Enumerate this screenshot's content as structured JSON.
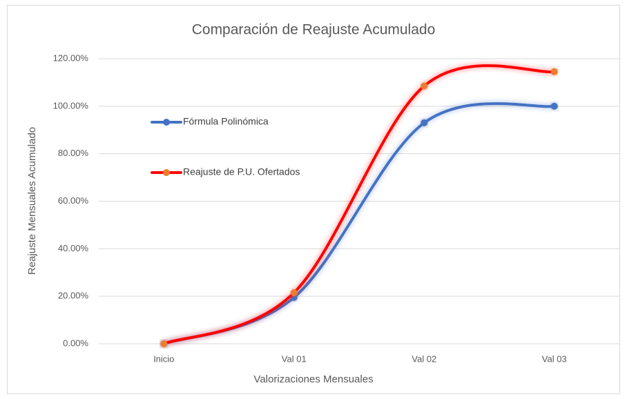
{
  "chart_data": {
    "type": "line",
    "title": "Comparación de Reajuste Acumulado",
    "x_label": "Valorizaciones Mensuales",
    "y_label": "Reajuste Mensuales Acumulado",
    "categories": [
      "Inicio",
      "Val 01",
      "Val 02",
      "Val 03"
    ],
    "series": [
      {
        "name": "Fórmula Polinómica",
        "color": "#4472c4",
        "marker_color": "#4472c4",
        "values": [
          0,
          19.5,
          93,
          100
        ]
      },
      {
        "name": "Reajuste de P.U. Ofertados",
        "color": "#ff0000",
        "marker_color": "#ed7d31",
        "values": [
          0,
          21.5,
          108.5,
          114.5
        ]
      }
    ],
    "ylim": [
      0,
      120
    ],
    "yticks": [
      {
        "value": 0,
        "label": "0.00%"
      },
      {
        "value": 20,
        "label": "20.00%"
      },
      {
        "value": 40,
        "label": "40.00%"
      },
      {
        "value": 60,
        "label": "60.00%"
      },
      {
        "value": 80,
        "label": "80.00%"
      },
      {
        "value": 100,
        "label": "100.00%"
      },
      {
        "value": 120,
        "label": "120.00%"
      }
    ],
    "grid": true,
    "smooth": true,
    "legend": "left"
  }
}
